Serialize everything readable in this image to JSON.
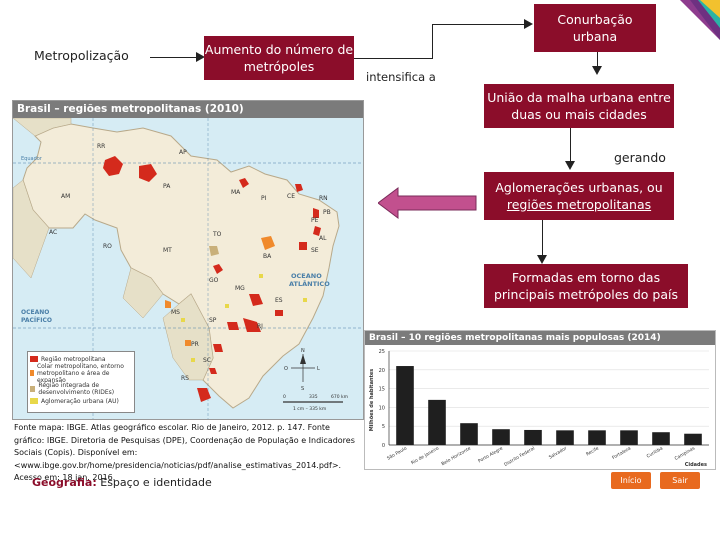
{
  "flow": {
    "metropolizacao": "Metropolização",
    "aumento": "Aumento do número de metrópoles",
    "intensifica": "intensifica a",
    "conurbacao": "Conurbação urbana",
    "uniao": "União da malha urbana entre duas ou mais cidades",
    "gerando": "gerando",
    "aglomeracoes_line1": "Aglomerações urbanas, ou",
    "aglomeracoes_line2": "regiões metropolitanas",
    "formadas": "Formadas em torno das principais metrópoles do país"
  },
  "map": {
    "title": "Brasil – regiões metropolitanas (2010)",
    "ocean_atlantic": "OCEANO ATLÂNTICO",
    "ocean_pacific": "OCEANO PACÍFICO",
    "equator": "Equador",
    "tropic": "Trópico de Capricórnio",
    "states": [
      "AM",
      "PA",
      "MA",
      "PI",
      "CE",
      "PE",
      "BA",
      "TO",
      "MT",
      "GO",
      "MG",
      "SP",
      "PR",
      "SC",
      "RS",
      "MS",
      "RO",
      "AC",
      "RR",
      "AP",
      "ES",
      "RJ",
      "AL",
      "SE",
      "PB",
      "RN"
    ],
    "legend": [
      {
        "label": "Região metropolitana",
        "color": "#d42a1c"
      },
      {
        "label": "Colar metropolitano, entorno metropolitano e área de expansão",
        "color": "#f08a2c"
      },
      {
        "label": "Região integrada de desenvolvimento (RIDEs)",
        "color": "#c9b07a"
      },
      {
        "label": "Aglomeração urbana (AU)",
        "color": "#e8d84a"
      }
    ],
    "scale_label": "1 cm – 335 km",
    "scale_ticks": [
      "0",
      "335",
      "670 km"
    ]
  },
  "source": "Fonte mapa: IBGE. Atlas geográfico escolar. Rio de Janeiro, 2012. p. 147. Fonte gráfico: IBGE. Diretoria de Pesquisas (DPE), Coordenação de População e Indicadores Sociais (Copis). Disponível em: <www.ibge.gov.br/home/presidencia/noticias/pdf/analise_estimativas_2014.pdf>. Acesso em: 18 jan. 2016.",
  "footer": {
    "subject": "Geografia:",
    "topic": " Espaço e identidade"
  },
  "nav": {
    "inicio": "Início",
    "sair": "Sair"
  },
  "chart_data": {
    "type": "bar",
    "title": "Brasil – 10 regiões metropolitanas mais populosas (2014)",
    "ylabel": "Milhões de habitantes",
    "xlabel": "Cidades",
    "ylim": [
      0,
      25
    ],
    "yticks": [
      0,
      5,
      10,
      15,
      20,
      25
    ],
    "categories": [
      "São Paulo",
      "Rio de Janeiro",
      "Belo Horizonte",
      "Porto Alegre",
      "Distrito Federal",
      "Salvador",
      "Recife",
      "Fortaleza",
      "Curitiba",
      "Campinas"
    ],
    "values": [
      21,
      12,
      5.8,
      4.2,
      4.0,
      3.9,
      3.9,
      3.9,
      3.4,
      3.0
    ],
    "bar_color": "#1f1f1f"
  }
}
